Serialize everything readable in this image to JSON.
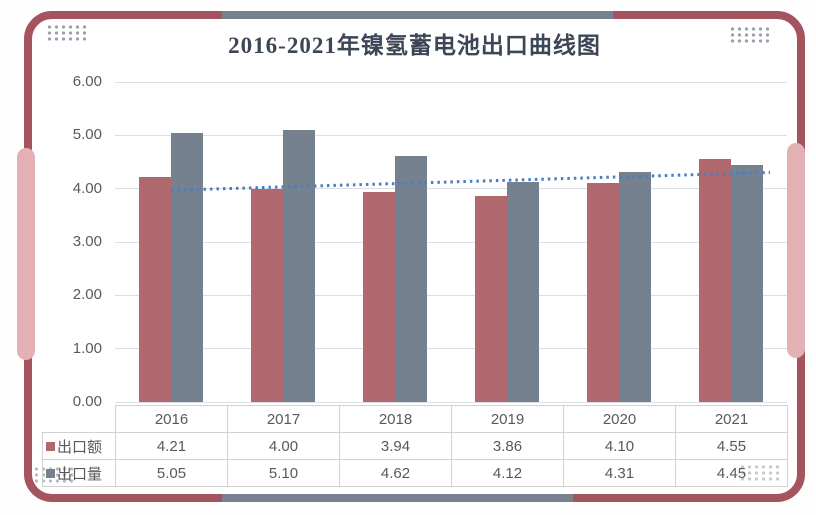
{
  "title": "2016-2021年镍氢蓄电池出口曲线图",
  "colors": {
    "frame_border": "#a5535e",
    "accent_segment": "#76828f",
    "side_pill": "#e3b1b4",
    "export_value_series": "#ae686e",
    "export_volume_series": "#75818f",
    "trendline": "#4a7ec0",
    "gridline": "#dbdee3",
    "axis_text": "#5a5a5a",
    "title_text": "#3d4656"
  },
  "chart_data": {
    "type": "bar",
    "title": "2016-2021年镍氢蓄电池出口曲线图",
    "categories": [
      "2016",
      "2017",
      "2018",
      "2019",
      "2020",
      "2021"
    ],
    "series": [
      {
        "name": "出口额",
        "color": "#ae686e",
        "values": [
          4.21,
          4.0,
          3.94,
          3.86,
          4.1,
          4.55
        ]
      },
      {
        "name": "出口量",
        "color": "#75818f",
        "values": [
          5.05,
          5.1,
          4.62,
          4.12,
          4.31,
          4.45
        ]
      }
    ],
    "trendline": {
      "style": "dotted",
      "color": "#4a7ec0",
      "value_start": 3.97,
      "value_end": 4.27
    },
    "ylim": [
      0,
      6
    ],
    "y_ticks": [
      "6.00",
      "5.00",
      "4.00",
      "3.00",
      "2.00",
      "1.00",
      "0.00"
    ],
    "grid": true,
    "legend_position": "table-left"
  },
  "table": {
    "header": [
      "2016",
      "2017",
      "2018",
      "2019",
      "2020",
      "2021"
    ],
    "rows": [
      {
        "label": "出口额",
        "marker_color": "#ae686e",
        "values": [
          "4.21",
          "4.00",
          "3.94",
          "3.86",
          "4.10",
          "4.55"
        ]
      },
      {
        "label": "出口量",
        "marker_color": "#75818f",
        "values": [
          "5.05",
          "5.10",
          "4.62",
          "4.12",
          "4.31",
          "4.45"
        ]
      }
    ]
  }
}
